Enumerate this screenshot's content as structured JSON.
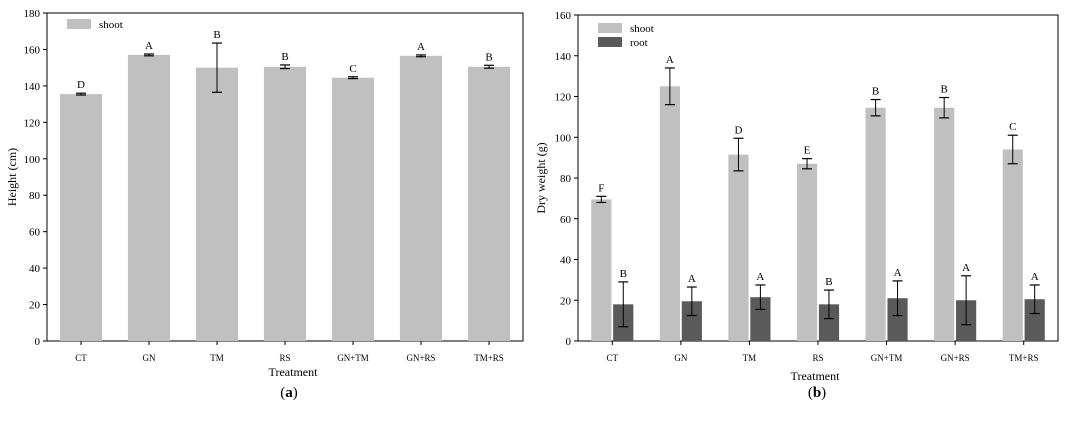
{
  "chart_data": [
    {
      "type": "bar",
      "panel_label": "(a)",
      "categories": [
        "CT",
        "GN",
        "TM",
        "RS",
        "GN+TM",
        "GN+RS",
        "TM+RS"
      ],
      "series": [
        {
          "name": "shoot",
          "values": [
            135.5,
            157,
            150,
            150.5,
            144.5,
            156.5,
            150.5
          ],
          "errors": [
            0.5,
            0.5,
            13.5,
            1,
            0.5,
            0.5,
            0.8
          ],
          "letters": [
            "D",
            "A",
            "B",
            "B",
            "C",
            "A",
            "B"
          ],
          "color": "#c0c0c0"
        }
      ],
      "ylabel": "Height (cm)",
      "xlabel": "Treatment",
      "ylim": [
        0,
        180
      ],
      "yticks": [
        0,
        20,
        40,
        60,
        80,
        100,
        120,
        140,
        160,
        180
      ],
      "grid": false,
      "legend": "top-left"
    },
    {
      "type": "bar",
      "panel_label": "(b)",
      "categories": [
        "CT",
        "GN",
        "TM",
        "RS",
        "GN+TM",
        "GN+RS",
        "TM+RS"
      ],
      "series": [
        {
          "name": "shoot",
          "values": [
            69.5,
            125,
            91.5,
            87,
            114.5,
            114.5,
            94
          ],
          "errors": [
            1.5,
            9,
            8,
            2.5,
            4,
            5,
            7
          ],
          "letters": [
            "F",
            "A",
            "D",
            "E",
            "B",
            "B",
            "C"
          ],
          "color": "#c0c0c0"
        },
        {
          "name": "root",
          "values": [
            18,
            19.5,
            21.5,
            18,
            21,
            20,
            20.5
          ],
          "errors": [
            11,
            7,
            6,
            7,
            8.5,
            12,
            7
          ],
          "letters": [
            "B",
            "A",
            "A",
            "B",
            "A",
            "A",
            "A"
          ],
          "color": "#5a5a5a"
        }
      ],
      "ylabel": "Dry weight (g)",
      "xlabel": "Treatment",
      "ylim": [
        0,
        160
      ],
      "yticks": [
        0,
        20,
        40,
        60,
        80,
        100,
        120,
        140,
        160
      ],
      "grid": false,
      "legend": "top-left"
    }
  ]
}
